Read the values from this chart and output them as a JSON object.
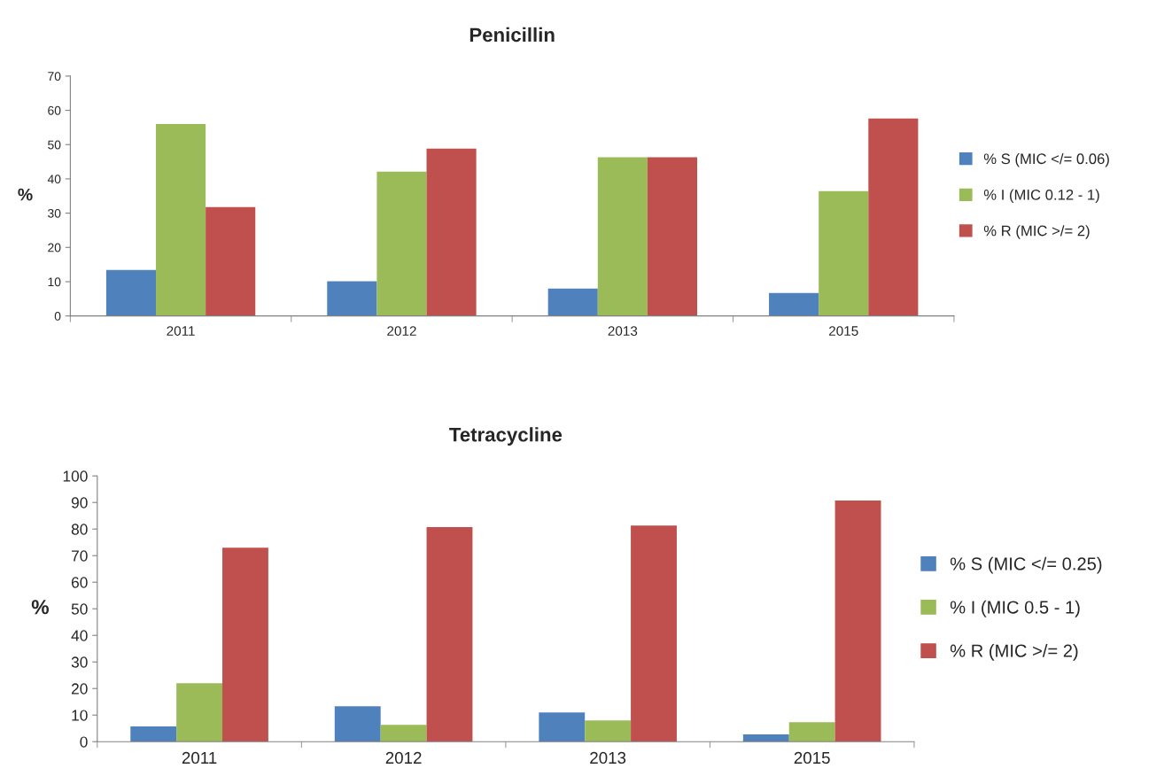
{
  "chart_data": [
    {
      "type": "bar",
      "title": "Penicillin",
      "ylabel": "%",
      "categories": [
        "2011",
        "2012",
        "2013",
        "2015"
      ],
      "ylim": [
        0,
        70
      ],
      "yticks": [
        0,
        10,
        20,
        30,
        40,
        50,
        60,
        70
      ],
      "legend": "right",
      "grid": false,
      "series": [
        {
          "name": "% S (MIC </= 0.06)",
          "color": "#4f81bd",
          "values": [
            13.4,
            10.1,
            8.0,
            6.7
          ]
        },
        {
          "name": "% I (MIC 0.12 - 1)",
          "color": "#9bbb59",
          "values": [
            56.0,
            42.1,
            46.3,
            36.4
          ]
        },
        {
          "name": "% R (MIC >/= 2)",
          "color": "#c0504d",
          "values": [
            31.8,
            48.8,
            46.3,
            57.6
          ]
        }
      ]
    },
    {
      "type": "bar",
      "title": "Tetracycline",
      "ylabel": "%",
      "categories": [
        "2011",
        "2012",
        "2013",
        "2015"
      ],
      "ylim": [
        0,
        100
      ],
      "yticks": [
        0,
        10,
        20,
        30,
        40,
        50,
        60,
        70,
        80,
        90,
        100
      ],
      "legend": "right",
      "grid": false,
      "series": [
        {
          "name": "% S (MIC </= 0.25)",
          "color": "#4f81bd",
          "values": [
            5.7,
            13.3,
            11.0,
            2.7
          ]
        },
        {
          "name": "% I (MIC 0.5 - 1)",
          "color": "#9bbb59",
          "values": [
            22.0,
            6.3,
            8.0,
            7.3
          ]
        },
        {
          "name": "% R (MIC >/= 2)",
          "color": "#c0504d",
          "values": [
            73.0,
            80.7,
            81.3,
            90.7
          ]
        }
      ]
    }
  ]
}
